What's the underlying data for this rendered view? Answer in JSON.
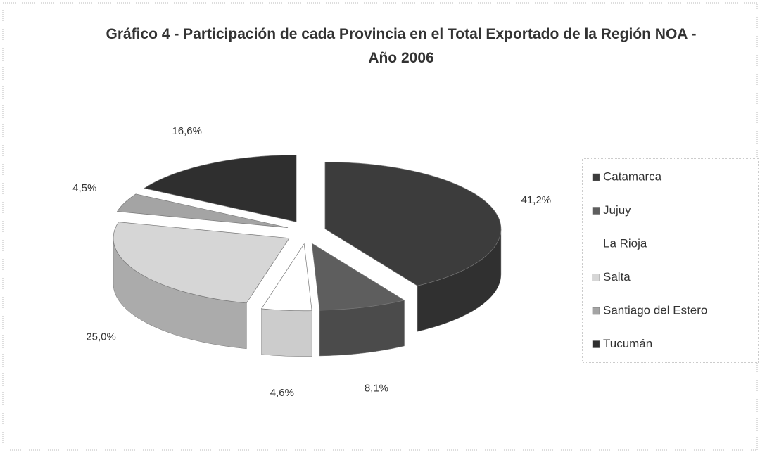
{
  "chart_data": {
    "type": "pie",
    "title": "Gráfico 4 - Participación de cada Provincia en el Total Exportado de la Región NOA - Año 2006",
    "categories": [
      "Catamarca",
      "Jujuy",
      "La Rioja",
      "Salta",
      "Santiago del Estero",
      "Tucumán"
    ],
    "values": [
      41.2,
      8.1,
      4.6,
      25.0,
      4.5,
      16.6
    ],
    "value_labels": [
      "41,2%",
      "8,1%",
      "4,6%",
      "25,0%",
      "4,5%",
      "16,6%"
    ],
    "colors": [
      "#3c3c3c",
      "#5e5e5e",
      "#ffffff",
      "#d6d6d6",
      "#a4a4a4",
      "#2f2f2f"
    ],
    "legend": "right"
  }
}
